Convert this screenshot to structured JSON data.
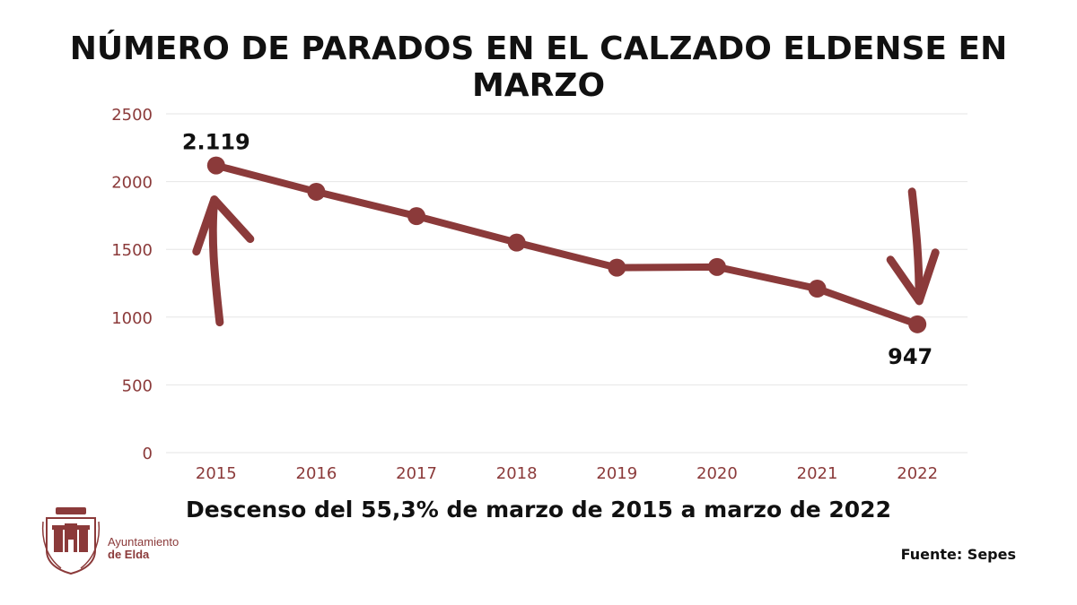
{
  "title": "NÚMERO DE PARADOS EN EL CALZADO ELDENSE EN MARZO",
  "subtitle": "Descenso del 55,3% de marzo de 2015 a marzo de 2022",
  "source": "Fuente: Sepes",
  "logo": {
    "line1": "Ayuntamiento",
    "line2": "de Elda"
  },
  "colors": {
    "series": "#8b3a3a",
    "axis_text": "#8b3a3a",
    "grid": "#e6e6e6",
    "text": "#111111"
  },
  "chart_data": {
    "type": "line",
    "x": [
      "2015",
      "2016",
      "2017",
      "2018",
      "2019",
      "2020",
      "2021",
      "2022"
    ],
    "series": [
      {
        "values": [
          2119,
          1925,
          1745,
          1550,
          1365,
          1370,
          1210,
          947
        ]
      }
    ],
    "ylim": [
      0,
      2500
    ],
    "yticks": [
      0,
      500,
      1000,
      1500,
      2000,
      2500
    ],
    "grid": true,
    "annotations": [
      {
        "label": "2.119",
        "x": "2015",
        "arrow": "up"
      },
      {
        "label": "947",
        "x": "2022",
        "arrow": "down"
      }
    ]
  }
}
